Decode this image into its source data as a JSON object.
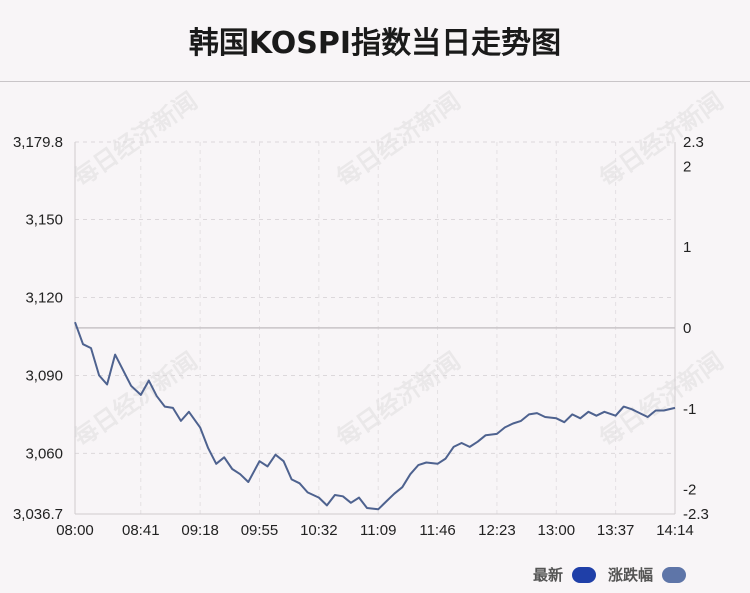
{
  "header": {
    "title": "韩国KOSPI指数当日走势图"
  },
  "watermark": {
    "text": "每日经济新闻"
  },
  "legend": [
    {
      "label": "最新",
      "color": "#1f3fa8"
    },
    {
      "label": "涨跌幅",
      "color": "#5e75a8"
    }
  ],
  "chart_data": {
    "type": "line",
    "line_color": "#4e628f",
    "x_ticks": [
      "08:00",
      "08:41",
      "09:18",
      "09:55",
      "10:32",
      "11:09",
      "11:46",
      "12:23",
      "13:00",
      "13:37",
      "14:14"
    ],
    "y_left_ticks": [
      "3,179.8",
      "3,150",
      "3,120",
      "3,090",
      "3,060",
      "3,036.7"
    ],
    "y_left_tick_values": [
      3179.8,
      3150,
      3120,
      3090,
      3060,
      3036.7
    ],
    "y_right_ticks": [
      "2.3",
      "2",
      "1",
      "0",
      "-1",
      "-2",
      "-2.3"
    ],
    "y_right_tick_values": [
      2.3,
      2,
      1,
      0,
      -1,
      -2,
      -2.3
    ],
    "ylim_left": [
      3036.7,
      3179.8
    ],
    "ylim_right": [
      -2.3,
      2.3
    ],
    "baseline_value": 3108.3,
    "grid": true,
    "series": [
      {
        "x": [
          "08:00",
          "08:05",
          "08:10",
          "08:15",
          "08:20",
          "08:25",
          "08:30",
          "08:35",
          "08:41",
          "08:46",
          "08:51",
          "08:56",
          "09:01",
          "09:06",
          "09:11",
          "09:18",
          "09:23",
          "09:28",
          "09:33",
          "09:38",
          "09:43",
          "09:48",
          "09:55",
          "10:00",
          "10:05",
          "10:10",
          "10:15",
          "10:20",
          "10:25",
          "10:32",
          "10:37",
          "10:42",
          "10:47",
          "10:52",
          "10:57",
          "11:02",
          "11:09",
          "11:14",
          "11:19",
          "11:24",
          "11:29",
          "11:34",
          "11:39",
          "11:46",
          "11:51",
          "11:56",
          "12:01",
          "12:06",
          "12:11",
          "12:16",
          "12:23",
          "12:28",
          "12:33",
          "12:38",
          "12:43",
          "12:48",
          "12:53",
          "13:00",
          "13:05",
          "13:10",
          "13:15",
          "13:20",
          "13:25",
          "13:30",
          "13:37",
          "13:42",
          "13:47",
          "13:52",
          "13:57",
          "14:02",
          "14:07",
          "14:14"
        ],
        "y": [
          3110.5,
          3102.0,
          3100.5,
          3090.0,
          3086.5,
          3098.0,
          3092.0,
          3086.0,
          3082.5,
          3088.0,
          3082.0,
          3078.0,
          3077.5,
          3072.5,
          3076.0,
          3070.0,
          3062.0,
          3056.0,
          3058.5,
          3054.0,
          3052.0,
          3049.0,
          3057.0,
          3055.0,
          3059.5,
          3057.0,
          3050.0,
          3048.5,
          3045.0,
          3043.0,
          3040.0,
          3044.0,
          3043.5,
          3041.0,
          3043.0,
          3039.0,
          3038.5,
          3041.5,
          3044.5,
          3047.0,
          3052.0,
          3055.5,
          3056.5,
          3056.0,
          3058.0,
          3062.5,
          3064.0,
          3062.5,
          3064.5,
          3067.0,
          3067.5,
          3070.0,
          3071.5,
          3072.5,
          3075.0,
          3075.5,
          3074.0,
          3073.5,
          3072.0,
          3075.0,
          3073.5,
          3076.0,
          3074.5,
          3076.0,
          3074.5,
          3078.0,
          3077.0,
          3075.5,
          3074.0,
          3076.5,
          3076.5,
          3077.5
        ]
      }
    ]
  }
}
